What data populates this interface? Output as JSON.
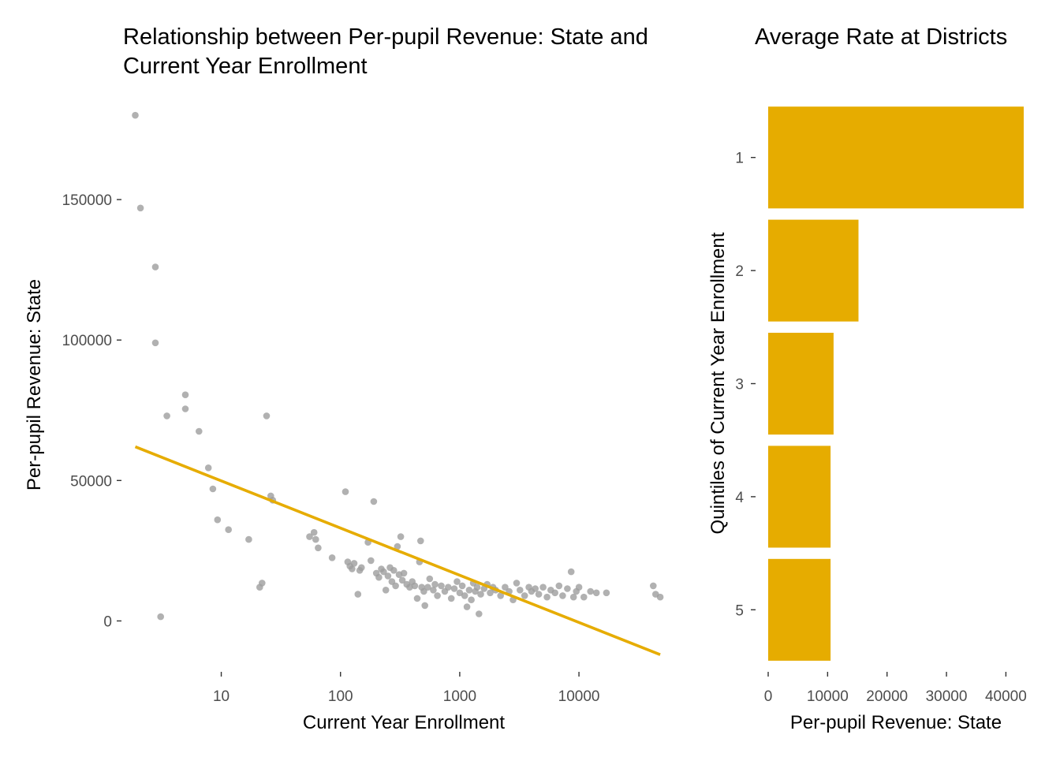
{
  "colors": {
    "accent": "#E6AC00",
    "points": "#9e9e9e",
    "tick_text": "#4d4d4d",
    "title_text": "#000000"
  },
  "chart_data": [
    {
      "type": "scatter",
      "title": "Relationship between Per-pupil Revenue: State and",
      "title_line2": "Current Year Enrollment",
      "xlabel": "Current Year Enrollment",
      "ylabel": "Per-pupil Revenue: State",
      "x_scale": "log10",
      "xlim": [
        1.5,
        55000
      ],
      "ylim": [
        -17000,
        184000
      ],
      "x_ticks": [
        10,
        100,
        1000,
        10000
      ],
      "x_tick_labels": [
        "10",
        "100",
        "1000",
        "10000"
      ],
      "y_ticks": [
        0,
        50000,
        100000,
        150000
      ],
      "y_tick_labels": [
        "0",
        "50000",
        "100000",
        "150000"
      ],
      "grid": false,
      "trend_line": {
        "x": [
          1.9,
          48000
        ],
        "y": [
          62000,
          -12000
        ]
      },
      "points": [
        [
          1.9,
          180000
        ],
        [
          2.1,
          147000
        ],
        [
          2.8,
          126000
        ],
        [
          2.8,
          99000
        ],
        [
          3.1,
          1500
        ],
        [
          3.5,
          73000
        ],
        [
          5,
          80500
        ],
        [
          5,
          75500
        ],
        [
          6.5,
          67500
        ],
        [
          7.8,
          54500
        ],
        [
          8.5,
          47000
        ],
        [
          9.3,
          36000
        ],
        [
          11.5,
          32500
        ],
        [
          17,
          29000
        ],
        [
          21,
          12000
        ],
        [
          22,
          13500
        ],
        [
          24,
          73000
        ],
        [
          26,
          44500
        ],
        [
          27,
          43000
        ],
        [
          55,
          30000
        ],
        [
          60,
          31500
        ],
        [
          62,
          29000
        ],
        [
          65,
          26000
        ],
        [
          85,
          22500
        ],
        [
          110,
          46000
        ],
        [
          115,
          21000
        ],
        [
          120,
          19500
        ],
        [
          125,
          18500
        ],
        [
          130,
          20500
        ],
        [
          140,
          9500
        ],
        [
          145,
          18000
        ],
        [
          150,
          19000
        ],
        [
          170,
          28000
        ],
        [
          180,
          21500
        ],
        [
          190,
          42500
        ],
        [
          200,
          17000
        ],
        [
          210,
          15500
        ],
        [
          220,
          18500
        ],
        [
          230,
          17500
        ],
        [
          240,
          11000
        ],
        [
          250,
          16000
        ],
        [
          260,
          19000
        ],
        [
          270,
          14000
        ],
        [
          280,
          18000
        ],
        [
          290,
          12500
        ],
        [
          300,
          26500
        ],
        [
          310,
          16500
        ],
        [
          320,
          30000
        ],
        [
          330,
          14500
        ],
        [
          340,
          17000
        ],
        [
          360,
          13000
        ],
        [
          380,
          12000
        ],
        [
          400,
          14000
        ],
        [
          420,
          12500
        ],
        [
          440,
          8000
        ],
        [
          460,
          21000
        ],
        [
          470,
          28500
        ],
        [
          480,
          12000
        ],
        [
          500,
          10500
        ],
        [
          510,
          5500
        ],
        [
          540,
          12000
        ],
        [
          560,
          15000
        ],
        [
          600,
          11000
        ],
        [
          620,
          13000
        ],
        [
          650,
          9000
        ],
        [
          700,
          12500
        ],
        [
          750,
          10500
        ],
        [
          800,
          12000
        ],
        [
          850,
          8000
        ],
        [
          900,
          11500
        ],
        [
          950,
          14000
        ],
        [
          1000,
          10000
        ],
        [
          1050,
          12500
        ],
        [
          1100,
          9000
        ],
        [
          1150,
          5000
        ],
        [
          1200,
          11000
        ],
        [
          1250,
          7500
        ],
        [
          1300,
          13500
        ],
        [
          1350,
          10500
        ],
        [
          1400,
          12000
        ],
        [
          1450,
          2500
        ],
        [
          1500,
          9500
        ],
        [
          1600,
          11500
        ],
        [
          1700,
          13000
        ],
        [
          1800,
          10000
        ],
        [
          1900,
          12000
        ],
        [
          2000,
          11000
        ],
        [
          2200,
          9000
        ],
        [
          2400,
          12000
        ],
        [
          2600,
          10500
        ],
        [
          2800,
          7500
        ],
        [
          3000,
          13500
        ],
        [
          3200,
          11000
        ],
        [
          3500,
          9000
        ],
        [
          3800,
          12000
        ],
        [
          4000,
          10500
        ],
        [
          4300,
          11500
        ],
        [
          4600,
          9500
        ],
        [
          5000,
          12000
        ],
        [
          5400,
          8500
        ],
        [
          5800,
          11000
        ],
        [
          6300,
          10000
        ],
        [
          6800,
          12500
        ],
        [
          7300,
          9000
        ],
        [
          8000,
          11500
        ],
        [
          8600,
          17500
        ],
        [
          9000,
          8500
        ],
        [
          9500,
          10500
        ],
        [
          10000,
          12000
        ],
        [
          11000,
          8500
        ],
        [
          12500,
          10500
        ],
        [
          14000,
          10000
        ],
        [
          17000,
          10000
        ],
        [
          42000,
          12500
        ],
        [
          44000,
          9500
        ],
        [
          48000,
          8500
        ]
      ]
    },
    {
      "type": "bar",
      "orientation": "horizontal",
      "title": "Average Rate at Districts",
      "xlabel": "Per-pupil Revenue: State",
      "ylabel": "Quintiles of Current Year Enrollment",
      "categories": [
        "1",
        "2",
        "3",
        "4",
        "5"
      ],
      "values": [
        43000,
        15200,
        11000,
        10500,
        10500
      ],
      "xlim": [
        0,
        43000
      ],
      "x_ticks": [
        0,
        10000,
        20000,
        30000,
        40000
      ],
      "x_tick_labels": [
        "0",
        "10000",
        "20000",
        "30000",
        "40000"
      ],
      "grid": false
    }
  ]
}
